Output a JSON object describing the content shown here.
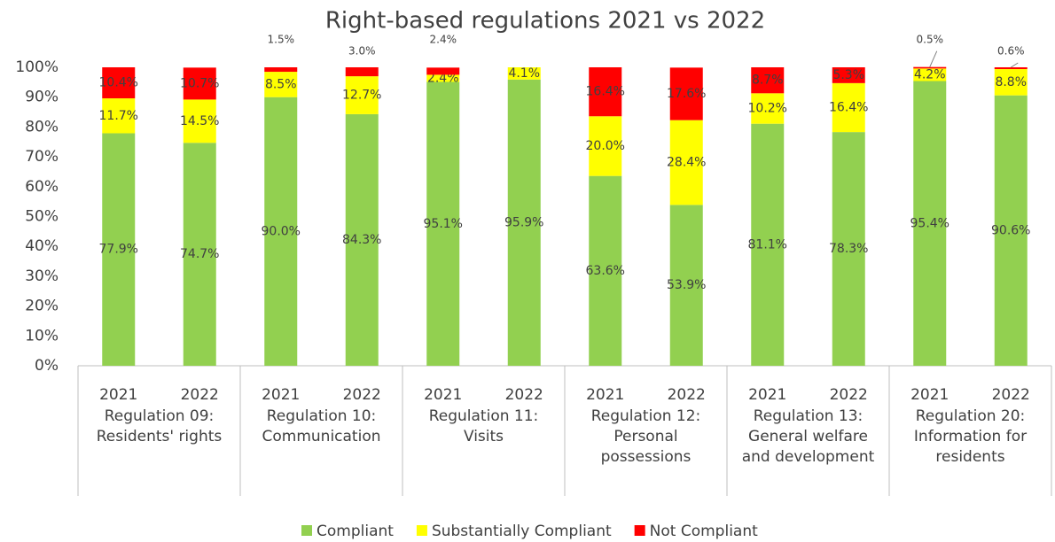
{
  "chart_data": {
    "type": "stacked_bar",
    "title": "Right-based regulations 2021 vs 2022",
    "categories": [
      "2021",
      "2022",
      "2021",
      "2022",
      "2021",
      "2022",
      "2021",
      "2022",
      "2021",
      "2022",
      "2021",
      "2022"
    ],
    "groups": [
      {
        "label": [
          "Regulation 09:",
          "Residents' rights"
        ]
      },
      {
        "label": [
          "Regulation 10:",
          "Communication"
        ]
      },
      {
        "label": [
          "Regulation 11:",
          "Visits"
        ]
      },
      {
        "label": [
          "Regulation 12:",
          "Personal",
          "possessions"
        ]
      },
      {
        "label": [
          "Regulation 13:",
          "General welfare",
          "and development"
        ]
      },
      {
        "label": [
          "Regulation 20:",
          "Information for",
          "residents"
        ]
      }
    ],
    "series": [
      {
        "name": "Compliant",
        "color": "#92d050",
        "values": [
          77.9,
          74.7,
          90.0,
          84.3,
          95.1,
          95.9,
          63.6,
          53.9,
          81.1,
          78.3,
          95.4,
          90.6
        ],
        "value_labels": [
          "77.9%",
          "74.7%",
          "90.0%",
          "84.3%",
          "95.1%",
          "95.9%",
          "63.6%",
          "53.9%",
          "81.1%",
          "78.3%",
          "95.4%",
          "90.6%"
        ]
      },
      {
        "name": "Substantially Compliant",
        "color": "#ffff00",
        "values": [
          11.7,
          14.5,
          8.5,
          12.7,
          2.4,
          4.1,
          20.0,
          28.4,
          10.2,
          16.4,
          4.2,
          8.8
        ],
        "value_labels": [
          "11.7%",
          "14.5%",
          "8.5%",
          "12.7%",
          "2.4%",
          "4.1%",
          "20.0%",
          "28.4%",
          "10.2%",
          "16.4%",
          "4.2%",
          "8.8%"
        ]
      },
      {
        "name": "Not Compliant",
        "color": "#ff0000",
        "values": [
          10.4,
          10.7,
          1.5,
          3.0,
          2.4,
          0,
          16.4,
          17.6,
          8.7,
          5.3,
          0.5,
          0.6
        ],
        "value_labels": [
          "10.4%",
          "10.7%",
          "1.5%",
          "3.0%",
          "2.4%",
          null,
          "16.4%",
          "17.6%",
          "8.7%",
          "5.3%",
          "0.5%",
          "0.6%"
        ]
      }
    ],
    "ylim": [
      0,
      100
    ],
    "yticks": [
      {
        "value": 0,
        "label": "0%"
      },
      {
        "value": 10,
        "label": "10%"
      },
      {
        "value": 20,
        "label": "20%"
      },
      {
        "value": 30,
        "label": "30%"
      },
      {
        "value": 40,
        "label": "40%"
      },
      {
        "value": 50,
        "label": "50%"
      },
      {
        "value": 60,
        "label": "60%"
      },
      {
        "value": 70,
        "label": "70%"
      },
      {
        "value": 80,
        "label": "80%"
      },
      {
        "value": 90,
        "label": "90%"
      },
      {
        "value": 100,
        "label": "100%"
      }
    ],
    "legend": "bottom"
  }
}
